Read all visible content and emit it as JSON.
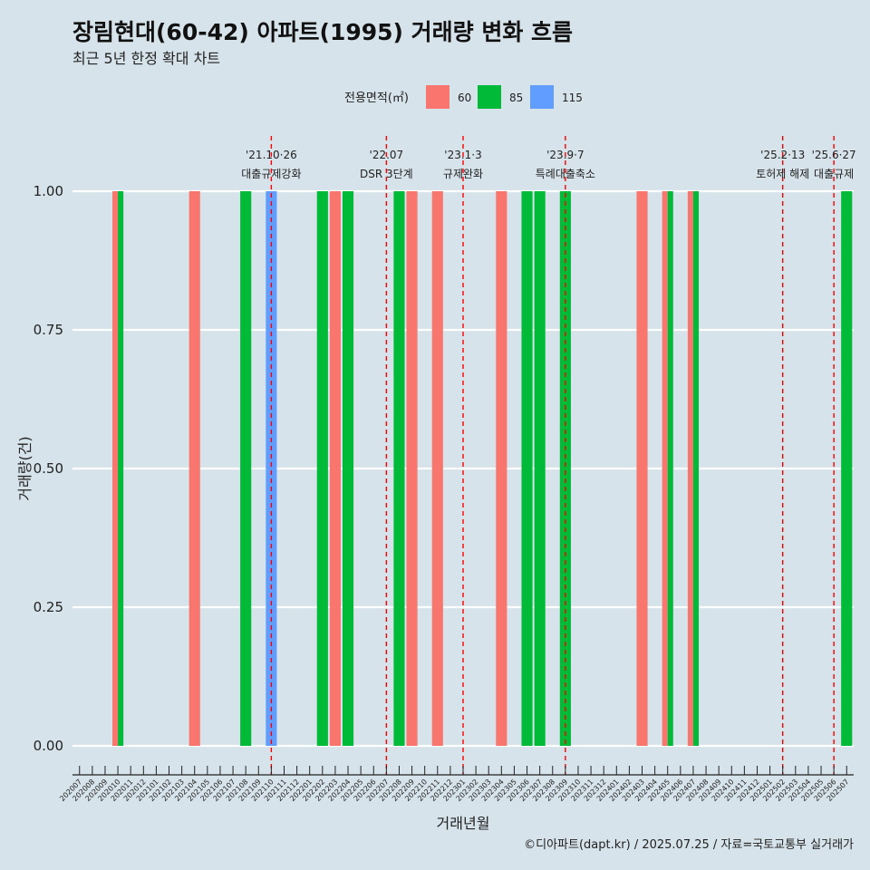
{
  "chart_data": {
    "type": "bar",
    "title": "장림현대(60-42) 아파트(1995) 거래량 변화 흐름",
    "subtitle": "최근 5년 한정 확대 차트",
    "xlabel": "거래년월",
    "ylabel": "거래량(건)",
    "ylim": [
      0,
      1
    ],
    "y_ticks": [
      "0.00",
      "0.25",
      "0.50",
      "0.75",
      "1.00"
    ],
    "y_tick_values": [
      0,
      0.25,
      0.5,
      0.75,
      1.0
    ],
    "grid": true,
    "legend_title": "전용면적(㎡)",
    "legend_position": "top",
    "categories": [
      "202007",
      "202008",
      "202009",
      "202010",
      "202011",
      "202012",
      "202101",
      "202102",
      "202103",
      "202104",
      "202105",
      "202106",
      "202107",
      "202108",
      "202109",
      "202110",
      "202111",
      "202112",
      "202201",
      "202202",
      "202203",
      "202204",
      "202205",
      "202206",
      "202207",
      "202208",
      "202209",
      "202210",
      "202211",
      "202212",
      "202301",
      "202302",
      "202303",
      "202304",
      "202305",
      "202306",
      "202307",
      "202308",
      "202309",
      "202310",
      "202311",
      "202312",
      "202401",
      "202402",
      "202403",
      "202404",
      "202405",
      "202406",
      "202407",
      "202408",
      "202409",
      "202410",
      "202411",
      "202412",
      "202501",
      "202502",
      "202503",
      "202504",
      "202505",
      "202506",
      "202507"
    ],
    "series": [
      {
        "name": "60",
        "color": "#f8766d",
        "values": [
          0,
          0,
          0,
          1,
          0,
          0,
          0,
          0,
          0,
          1,
          0,
          0,
          0,
          0,
          0,
          0,
          0,
          0,
          0,
          0,
          1,
          0,
          0,
          0,
          0,
          0,
          1,
          0,
          1,
          0,
          0,
          0,
          0,
          1,
          0,
          0,
          0,
          0,
          0,
          0,
          0,
          0,
          0,
          0,
          1,
          0,
          1,
          0,
          1,
          0,
          0,
          0,
          0,
          0,
          0,
          0,
          0,
          0,
          0,
          0,
          0
        ]
      },
      {
        "name": "85",
        "color": "#00ba38",
        "values": [
          0,
          0,
          0,
          1,
          0,
          0,
          0,
          0,
          0,
          0,
          0,
          0,
          0,
          1,
          0,
          0,
          0,
          0,
          0,
          1,
          0,
          1,
          0,
          0,
          0,
          1,
          0,
          0,
          0,
          0,
          0,
          0,
          0,
          0,
          0,
          1,
          1,
          0,
          1,
          0,
          0,
          0,
          0,
          0,
          0,
          0,
          1,
          0,
          1,
          0,
          0,
          0,
          0,
          0,
          0,
          0,
          0,
          0,
          0,
          0,
          1
        ]
      },
      {
        "name": "115",
        "color": "#619cff",
        "values": [
          0,
          0,
          0,
          0,
          0,
          0,
          0,
          0,
          0,
          0,
          0,
          0,
          0,
          0,
          0,
          1,
          0,
          0,
          0,
          0,
          0,
          0,
          0,
          0,
          0,
          0,
          0,
          0,
          0,
          0,
          0,
          0,
          0,
          0,
          0,
          0,
          0,
          0,
          0,
          0,
          0,
          0,
          0,
          0,
          0,
          0,
          0,
          0,
          0,
          0,
          0,
          0,
          0,
          0,
          0,
          0,
          0,
          0,
          0,
          0,
          0
        ]
      }
    ],
    "annotations": [
      {
        "month": "202110",
        "date": "'21.10·26",
        "label": "대출규제강화"
      },
      {
        "month": "202207",
        "date": "'22.07",
        "label": "DSR 3단계"
      },
      {
        "month": "202301",
        "date": "'23.1·3",
        "label": "규제완화"
      },
      {
        "month": "202309",
        "date": "'23.9·7",
        "label": "특례대출축소"
      },
      {
        "month": "202502",
        "date": "'25.2·13",
        "label": "토허제 해제"
      },
      {
        "month": "202506",
        "date": "'25.6·27",
        "label": "대출규제"
      }
    ],
    "vline_color": "#ff0000",
    "caption": "©디아파트(dapt.kr) / 2025.07.25 / 자료=국토교통부 실거래가"
  }
}
